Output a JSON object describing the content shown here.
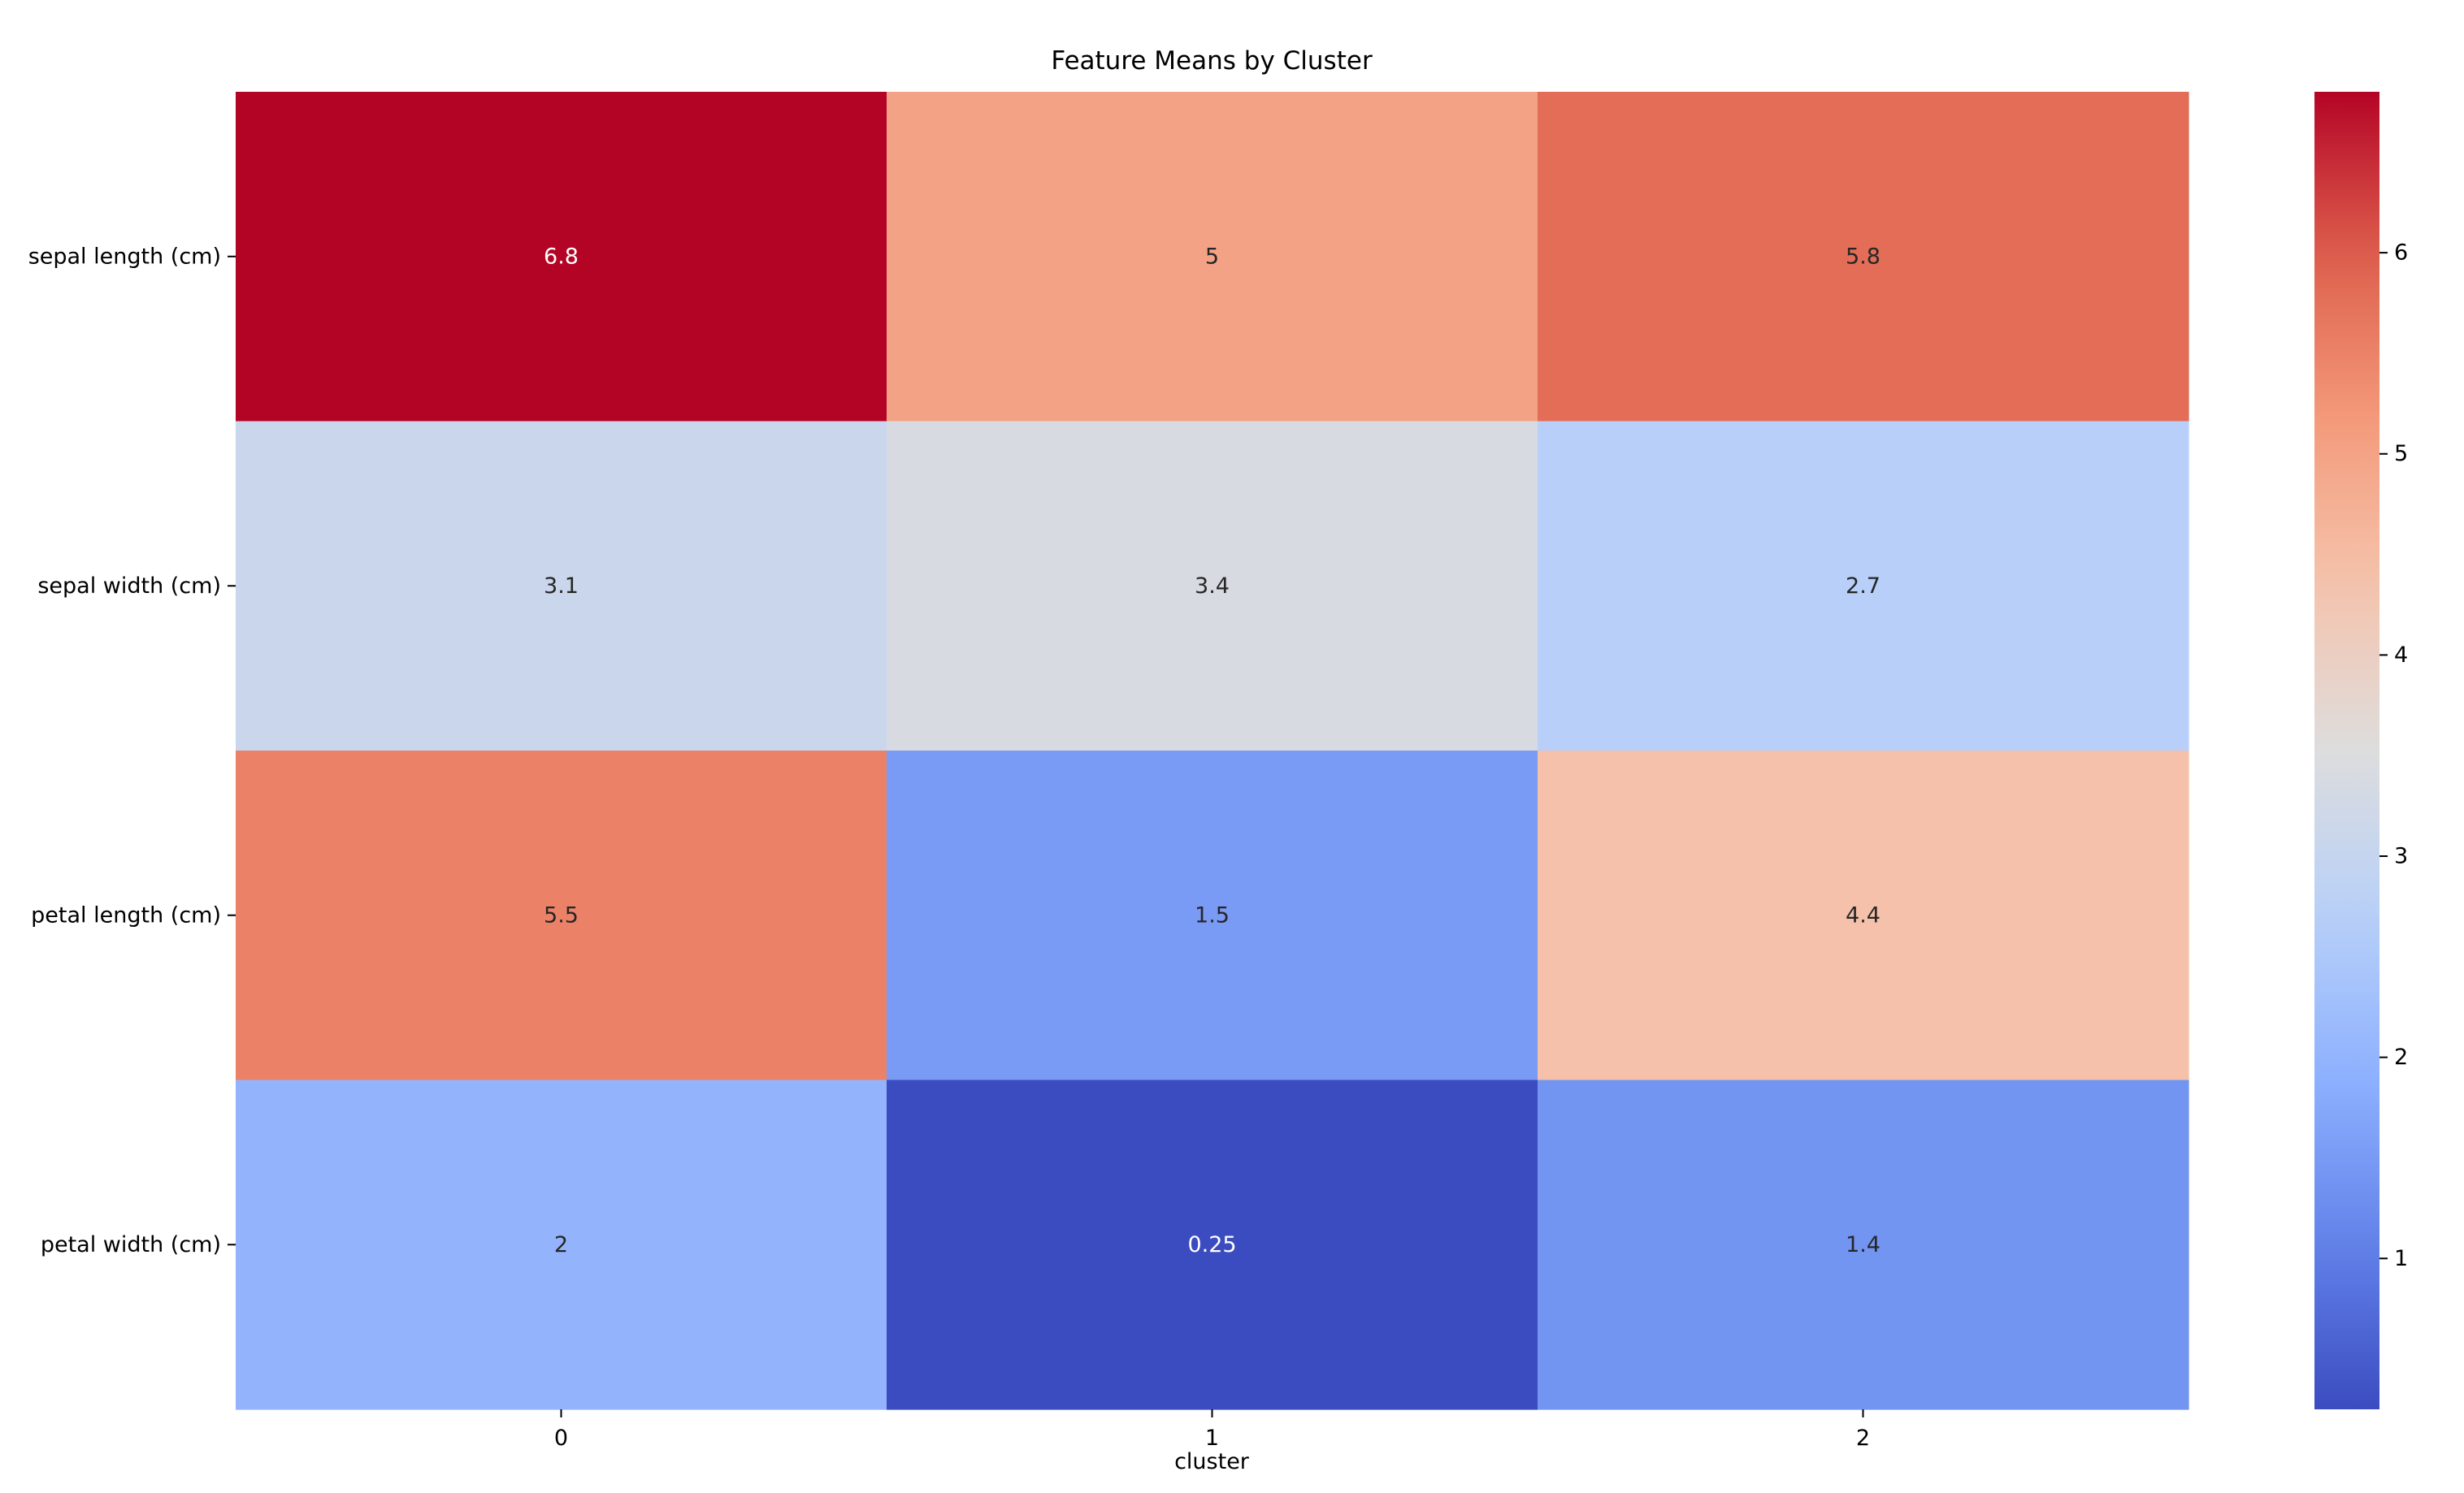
{
  "chart_data": {
    "type": "heatmap",
    "title": "Feature Means by Cluster",
    "xlabel": "cluster",
    "ylabel": "",
    "x_categories": [
      "0",
      "1",
      "2"
    ],
    "y_categories": [
      "sepal length (cm)",
      "sepal width (cm)",
      "petal length (cm)",
      "petal width (cm)"
    ],
    "values": [
      [
        6.8,
        5,
        5.8
      ],
      [
        3.1,
        3.4,
        2.7
      ],
      [
        5.5,
        1.5,
        4.4
      ],
      [
        2,
        0.25,
        1.4
      ]
    ],
    "cell_labels": [
      [
        "6.8",
        "5",
        "5.8"
      ],
      [
        "3.1",
        "3.4",
        "2.7"
      ],
      [
        "5.5",
        "1.5",
        "4.4"
      ],
      [
        "2",
        "0.25",
        "1.4"
      ]
    ],
    "colormap": "coolwarm",
    "vmin": 0.25,
    "vmax": 6.8,
    "colorbar_ticks": [
      "1",
      "2",
      "3",
      "4",
      "5",
      "6"
    ],
    "colorbar_tick_values": [
      1,
      2,
      3,
      4,
      5,
      6
    ],
    "colors": {
      "dark_text": "#262626",
      "light_text": "#ffffff",
      "axis": "#000000"
    }
  }
}
